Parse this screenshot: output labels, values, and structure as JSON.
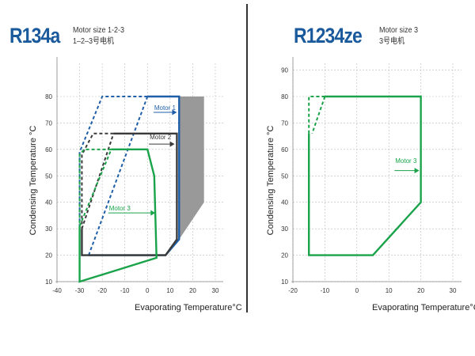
{
  "header": {
    "left": {
      "refrigerant": "R134a",
      "motor_size_en": "Motor size 1-2-3",
      "motor_size_cn": "1–2–3号电机"
    },
    "right": {
      "refrigerant": "R1234ze",
      "motor_size_en": "Motor size 3",
      "motor_size_cn": "3号电机"
    }
  },
  "colors": {
    "motor1": "#1f5fa8",
    "motor2": "#3a3a3a",
    "motor3": "#1aa34a",
    "shade": "#999999",
    "grid": "#bbbbbb"
  },
  "chart_data": [
    {
      "type": "line",
      "title": "R134a",
      "xlabel": "Evaporating Temperature°C",
      "ylabel": "Condensing Temperature °C",
      "xlim": [
        -40,
        30
      ],
      "ylim": [
        10,
        90
      ],
      "xticks": [
        -40,
        -30,
        -20,
        -10,
        0,
        10,
        20,
        30
      ],
      "yticks": [
        10,
        20,
        30,
        40,
        50,
        60,
        70,
        80
      ],
      "grid": true,
      "shaded_area": [
        [
          14,
          80
        ],
        [
          25,
          80
        ],
        [
          25,
          40
        ],
        [
          14,
          26
        ]
      ],
      "series": [
        {
          "name": "Motor 1",
          "color": "#1f5fa8",
          "style": "solid",
          "points": [
            [
              0,
              80
            ],
            [
              14,
              80
            ],
            [
              14,
              26
            ],
            [
              8,
              20
            ],
            [
              -26,
              20
            ]
          ]
        },
        {
          "name": "Motor 1",
          "color": "#1f5fa8",
          "style": "dashed",
          "points": [
            [
              0,
              80
            ],
            [
              -20,
              80
            ],
            [
              -30,
              59
            ],
            [
              -30,
              20
            ],
            [
              -26,
              20
            ]
          ]
        },
        {
          "name": "Motor 1",
          "color": "#1f5fa8",
          "style": "dashed",
          "points": [
            [
              -26,
              20
            ],
            [
              0,
              80
            ]
          ]
        },
        {
          "name": "Motor 2",
          "color": "#3a3a3a",
          "style": "solid",
          "points": [
            [
              -15,
              66
            ],
            [
              13,
              66
            ],
            [
              13,
              26
            ],
            [
              8,
              20
            ],
            [
              -29,
              20
            ],
            [
              -29,
              30
            ]
          ]
        },
        {
          "name": "Motor 2",
          "color": "#3a3a3a",
          "style": "dashed",
          "points": [
            [
              -15,
              66
            ],
            [
              -24,
              66
            ],
            [
              -29,
              58
            ],
            [
              -29,
              30
            ]
          ]
        },
        {
          "name": "Motor 2",
          "color": "#3a3a3a",
          "style": "dashed",
          "points": [
            [
              -29,
              30
            ],
            [
              -15,
              66
            ]
          ]
        },
        {
          "name": "Motor 3",
          "color": "#1aa34a",
          "style": "solid",
          "points": [
            [
              -16,
              60
            ],
            [
              0,
              60
            ],
            [
              3,
              50
            ],
            [
              4,
              19
            ],
            [
              -30,
              10
            ],
            [
              -30,
              31
            ]
          ]
        },
        {
          "name": "Motor 3",
          "color": "#1aa34a",
          "style": "dashed",
          "points": [
            [
              -16,
              60
            ],
            [
              -28,
              60
            ],
            [
              -30,
              58
            ],
            [
              -30,
              31
            ]
          ]
        },
        {
          "name": "Motor 3",
          "color": "#1aa34a",
          "style": "dashed",
          "points": [
            [
              -30,
              31
            ],
            [
              -16,
              60
            ]
          ]
        }
      ],
      "annotations": [
        {
          "text": "Motor 1",
          "color": "#1f5fa8",
          "at": [
            3,
            74
          ],
          "arrow_to": [
            13,
            74
          ]
        },
        {
          "text": "Motor 2",
          "color": "#3a3a3a",
          "at": [
            1,
            63
          ],
          "arrow_to": [
            12,
            62
          ]
        },
        {
          "text": "Motor 3",
          "color": "#1aa34a",
          "at": [
            -17,
            36
          ],
          "arrow_to": [
            3.5,
            36
          ]
        }
      ]
    },
    {
      "type": "line",
      "title": "R1234ze",
      "xlabel": "Evaporating Temperature°C",
      "ylabel": "Condensing Temperature °C",
      "xlim": [
        -20,
        30
      ],
      "ylim": [
        10,
        90
      ],
      "xticks": [
        -20,
        -10,
        0,
        10,
        20,
        30
      ],
      "yticks": [
        10,
        20,
        30,
        40,
        50,
        60,
        70,
        80,
        90
      ],
      "grid": true,
      "series": [
        {
          "name": "Motor 3",
          "color": "#1aa34a",
          "style": "solid",
          "points": [
            [
              -10,
              80
            ],
            [
              20,
              80
            ],
            [
              20,
              40
            ],
            [
              5,
              20
            ],
            [
              -15,
              20
            ],
            [
              -15,
              66
            ]
          ]
        },
        {
          "name": "Motor 3",
          "color": "#1aa34a",
          "style": "dashed",
          "points": [
            [
              -15,
              66
            ],
            [
              -15,
              80
            ],
            [
              -10,
              80
            ]
          ]
        },
        {
          "name": "Motor 3",
          "color": "#1aa34a",
          "style": "dashed",
          "points": [
            [
              -10,
              80
            ],
            [
              -14,
              66
            ]
          ]
        }
      ],
      "annotations": [
        {
          "text": "Motor 3",
          "color": "#1aa34a",
          "at": [
            12,
            54
          ],
          "arrow_to": [
            19.5,
            52
          ]
        }
      ]
    }
  ]
}
